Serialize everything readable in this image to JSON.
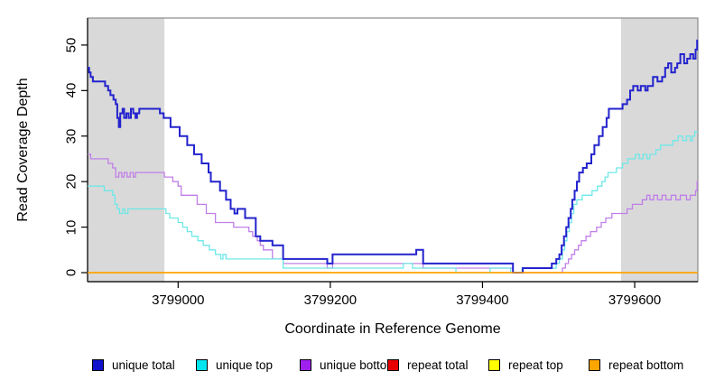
{
  "chart_data": {
    "type": "line",
    "step": true,
    "title": "",
    "xlabel": "Coordinate in Reference Genome",
    "ylabel": "Read Coverage Depth",
    "xlim": [
      3798881,
      3799683
    ],
    "ylim": [
      0,
      56
    ],
    "x_ticks": [
      3799000,
      3799200,
      3799400,
      3799600
    ],
    "y_ticks": [
      0,
      10,
      20,
      30,
      40,
      50
    ],
    "grid": false,
    "colors": {
      "background": "#FFFFFF",
      "shaded_region": "#D9D9D9",
      "box_border": "#8A8A8A",
      "axis": "#000000"
    },
    "shaded_regions": [
      {
        "name": "left-repeat-region",
        "from": 3798881,
        "to": 3798982
      },
      {
        "name": "right-repeat-region",
        "from": 3799582,
        "to": 3799683
      }
    ],
    "legend": {
      "position": "bottom",
      "entries": [
        {
          "label": "unique total",
          "color": "#1212CC"
        },
        {
          "label": "unique top",
          "color": "#00E5EE"
        },
        {
          "label": "unique bottom",
          "color": "#A020F0"
        },
        {
          "label": "repeat total",
          "color": "#E80000"
        },
        {
          "label": "repeat top",
          "color": "#FFFF00"
        },
        {
          "label": "repeat bottom",
          "color": "#FFA500"
        }
      ]
    },
    "series": [
      {
        "name": "repeat total",
        "color": "#E80000",
        "lwd": 1.2,
        "points": [
          [
            3798881,
            0
          ]
        ]
      },
      {
        "name": "repeat top",
        "color": "#FFFF00",
        "lwd": 1.2,
        "points": [
          [
            3798881,
            0
          ]
        ]
      },
      {
        "name": "unique bottom",
        "color": "#C07FE8",
        "lwd": 1.3,
        "points": [
          [
            3798881,
            26
          ],
          [
            3798885,
            25
          ],
          [
            3798908,
            24
          ],
          [
            3798914,
            23
          ],
          [
            3798918,
            21
          ],
          [
            3798922,
            22
          ],
          [
            3798926,
            21
          ],
          [
            3798929,
            22
          ],
          [
            3798933,
            21
          ],
          [
            3798937,
            22
          ],
          [
            3798941,
            21
          ],
          [
            3798944,
            22
          ],
          [
            3798982,
            21
          ],
          [
            3798993,
            20
          ],
          [
            3799000,
            19
          ],
          [
            3799004,
            17
          ],
          [
            3799025,
            15
          ],
          [
            3799037,
            13
          ],
          [
            3799049,
            11
          ],
          [
            3799073,
            10
          ],
          [
            3799093,
            9
          ],
          [
            3799098,
            8
          ],
          [
            3799104,
            7
          ],
          [
            3799108,
            6
          ],
          [
            3799112,
            5
          ],
          [
            3799124,
            3
          ],
          [
            3799138,
            2
          ],
          [
            3799196,
            1
          ],
          [
            3799203,
            2
          ],
          [
            3799322,
            1
          ],
          [
            3799440,
            0
          ],
          [
            3799505,
            1
          ],
          [
            3799509,
            2
          ],
          [
            3799513,
            3
          ],
          [
            3799517,
            4
          ],
          [
            3799521,
            5
          ],
          [
            3799526,
            6
          ],
          [
            3799530,
            7
          ],
          [
            3799536,
            8
          ],
          [
            3799542,
            9
          ],
          [
            3799550,
            10
          ],
          [
            3799556,
            11
          ],
          [
            3799562,
            12
          ],
          [
            3799570,
            13
          ],
          [
            3799590,
            14
          ],
          [
            3799597,
            15
          ],
          [
            3799610,
            16
          ],
          [
            3799616,
            17
          ],
          [
            3799620,
            16
          ],
          [
            3799625,
            17
          ],
          [
            3799630,
            16
          ],
          [
            3799636,
            17
          ],
          [
            3799641,
            16
          ],
          [
            3799648,
            17
          ],
          [
            3799654,
            16
          ],
          [
            3799660,
            17
          ],
          [
            3799668,
            16
          ],
          [
            3799673,
            17
          ],
          [
            3799680,
            18
          ],
          [
            3799682,
            20
          ]
        ]
      },
      {
        "name": "unique top",
        "color": "#6FE8E8",
        "lwd": 1.3,
        "points": [
          [
            3798881,
            19
          ],
          [
            3798903,
            18
          ],
          [
            3798914,
            17
          ],
          [
            3798917,
            15
          ],
          [
            3798920,
            14
          ],
          [
            3798923,
            13
          ],
          [
            3798927,
            14
          ],
          [
            3798930,
            13
          ],
          [
            3798934,
            14
          ],
          [
            3798984,
            13
          ],
          [
            3798989,
            12
          ],
          [
            3799000,
            11
          ],
          [
            3799006,
            10
          ],
          [
            3799012,
            9
          ],
          [
            3799018,
            8
          ],
          [
            3799026,
            7
          ],
          [
            3799033,
            6
          ],
          [
            3799041,
            5
          ],
          [
            3799049,
            4
          ],
          [
            3799056,
            3
          ],
          [
            3799059,
            4
          ],
          [
            3799063,
            3
          ],
          [
            3799138,
            1
          ],
          [
            3799296,
            2
          ],
          [
            3799308,
            1
          ],
          [
            3799365,
            0
          ],
          [
            3799410,
            1
          ],
          [
            3799437,
            0
          ],
          [
            3799452,
            1
          ],
          [
            3799497,
            2
          ],
          [
            3799501,
            3
          ],
          [
            3799505,
            5
          ],
          [
            3799508,
            7
          ],
          [
            3799511,
            9
          ],
          [
            3799514,
            11
          ],
          [
            3799517,
            13
          ],
          [
            3799520,
            15
          ],
          [
            3799524,
            16
          ],
          [
            3799531,
            17
          ],
          [
            3799544,
            18
          ],
          [
            3799551,
            19
          ],
          [
            3799557,
            20
          ],
          [
            3799561,
            21
          ],
          [
            3799565,
            22
          ],
          [
            3799576,
            23
          ],
          [
            3799584,
            24
          ],
          [
            3799591,
            25
          ],
          [
            3799601,
            26
          ],
          [
            3799606,
            25
          ],
          [
            3799611,
            26
          ],
          [
            3799616,
            25
          ],
          [
            3799620,
            26
          ],
          [
            3799628,
            27
          ],
          [
            3799634,
            28
          ],
          [
            3799650,
            29
          ],
          [
            3799657,
            30
          ],
          [
            3799663,
            29
          ],
          [
            3799668,
            30
          ],
          [
            3799673,
            29
          ],
          [
            3799676,
            30
          ],
          [
            3799679,
            31
          ]
        ]
      },
      {
        "name": "unique total",
        "color": "#2323CE",
        "lwd": 2,
        "points": [
          [
            3798881,
            45
          ],
          [
            3798883,
            44
          ],
          [
            3798885,
            43
          ],
          [
            3798888,
            42
          ],
          [
            3798904,
            41
          ],
          [
            3798908,
            40
          ],
          [
            3798911,
            39
          ],
          [
            3798915,
            38
          ],
          [
            3798918,
            37
          ],
          [
            3798920,
            34
          ],
          [
            3798922,
            32
          ],
          [
            3798924,
            35
          ],
          [
            3798927,
            36
          ],
          [
            3798929,
            34
          ],
          [
            3798932,
            35
          ],
          [
            3798935,
            34
          ],
          [
            3798938,
            36
          ],
          [
            3798941,
            35
          ],
          [
            3798944,
            34
          ],
          [
            3798946,
            35
          ],
          [
            3798949,
            36
          ],
          [
            3798976,
            35
          ],
          [
            3798981,
            34
          ],
          [
            3798990,
            32
          ],
          [
            3799002,
            30
          ],
          [
            3799012,
            28
          ],
          [
            3799021,
            26
          ],
          [
            3799031,
            24
          ],
          [
            3799040,
            22
          ],
          [
            3799043,
            20
          ],
          [
            3799055,
            18
          ],
          [
            3799063,
            16
          ],
          [
            3799069,
            14
          ],
          [
            3799074,
            13
          ],
          [
            3799078,
            14
          ],
          [
            3799088,
            12
          ],
          [
            3799102,
            8
          ],
          [
            3799108,
            7
          ],
          [
            3799124,
            6
          ],
          [
            3799138,
            3
          ],
          [
            3799196,
            2
          ],
          [
            3799203,
            4
          ],
          [
            3799313,
            5
          ],
          [
            3799322,
            2
          ],
          [
            3799440,
            0
          ],
          [
            3799453,
            1
          ],
          [
            3799491,
            2
          ],
          [
            3799497,
            3
          ],
          [
            3799501,
            4
          ],
          [
            3799504,
            6
          ],
          [
            3799507,
            8
          ],
          [
            3799510,
            10
          ],
          [
            3799513,
            12
          ],
          [
            3799516,
            14
          ],
          [
            3799518,
            16
          ],
          [
            3799521,
            18
          ],
          [
            3799524,
            20
          ],
          [
            3799527,
            22
          ],
          [
            3799532,
            23
          ],
          [
            3799537,
            24
          ],
          [
            3799543,
            26
          ],
          [
            3799547,
            28
          ],
          [
            3799553,
            30
          ],
          [
            3799558,
            32
          ],
          [
            3799563,
            34
          ],
          [
            3799566,
            36
          ],
          [
            3799584,
            37
          ],
          [
            3799590,
            38
          ],
          [
            3799594,
            40
          ],
          [
            3799598,
            41
          ],
          [
            3799604,
            40
          ],
          [
            3799608,
            41
          ],
          [
            3799614,
            40
          ],
          [
            3799617,
            41
          ],
          [
            3799624,
            43
          ],
          [
            3799630,
            42
          ],
          [
            3799636,
            43
          ],
          [
            3799640,
            45
          ],
          [
            3799644,
            46
          ],
          [
            3799648,
            44
          ],
          [
            3799653,
            45
          ],
          [
            3799656,
            46
          ],
          [
            3799660,
            48
          ],
          [
            3799665,
            46
          ],
          [
            3799669,
            47
          ],
          [
            3799673,
            48
          ],
          [
            3799677,
            47
          ],
          [
            3799680,
            49
          ],
          [
            3799682,
            51
          ]
        ]
      },
      {
        "name": "repeat bottom",
        "color": "#FFA500",
        "lwd": 1.5,
        "points": [
          [
            3798881,
            0
          ]
        ]
      }
    ]
  }
}
